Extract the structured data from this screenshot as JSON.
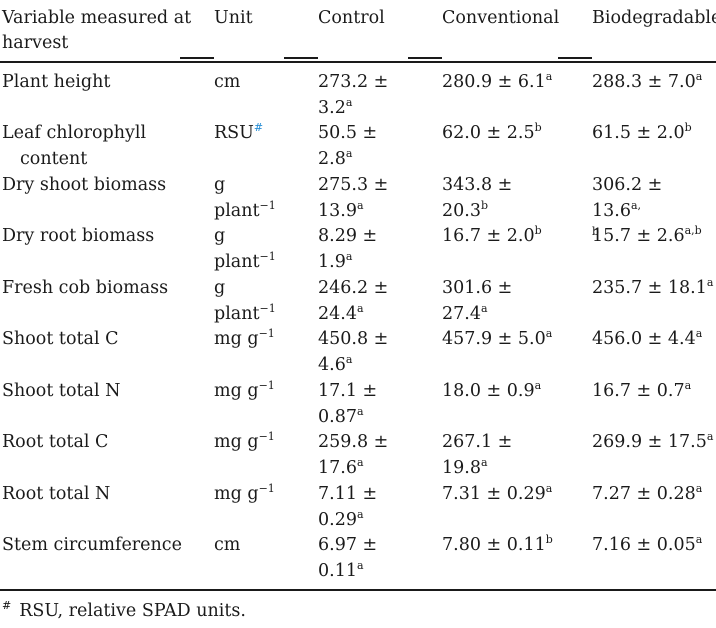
{
  "table": {
    "headers": {
      "variable_line1": "Variable measured at",
      "variable_line2": "harvest",
      "unit": "Unit",
      "control": "Control",
      "conventional": "Conventional",
      "biodegradable": "Biodegradable"
    },
    "rows": [
      {
        "variable": [
          "Plant height"
        ],
        "unit": [
          "cm"
        ],
        "unit_sup": [
          ""
        ],
        "control": [
          "273.2 ±",
          "3.2"
        ],
        "control_sup": [
          "",
          "a"
        ],
        "conventional": [
          "280.9 ± 6.1"
        ],
        "conventional_sup": [
          "a"
        ],
        "biodegradable": [
          "288.3 ± 7.0"
        ],
        "biodegradable_sup": [
          "a"
        ]
      },
      {
        "variable": [
          "Leaf chlorophyll",
          "content"
        ],
        "unit": [
          "RSU"
        ],
        "unit_sup": [
          "#"
        ],
        "control": [
          "50.5 ±",
          "2.8"
        ],
        "control_sup": [
          "",
          "a"
        ],
        "conventional": [
          "62.0 ± 2.5"
        ],
        "conventional_sup": [
          "b"
        ],
        "biodegradable": [
          "61.5 ± 2.0"
        ],
        "biodegradable_sup": [
          "b"
        ]
      },
      {
        "variable": [
          "Dry shoot biomass"
        ],
        "unit": [
          "g",
          "plant"
        ],
        "unit_sup": [
          "",
          "−1"
        ],
        "control": [
          "275.3 ±",
          "13.9"
        ],
        "control_sup": [
          "",
          "a"
        ],
        "conventional": [
          "343.8 ±",
          "20.3"
        ],
        "conventional_sup": [
          "",
          "b"
        ],
        "biodegradable": [
          "306.2 ± 13.6",
          ""
        ],
        "biodegradable_sup": [
          "a,",
          "b"
        ]
      },
      {
        "variable": [
          "Dry root biomass"
        ],
        "unit": [
          "g",
          "plant"
        ],
        "unit_sup": [
          "",
          "−1"
        ],
        "control": [
          "8.29 ±",
          "1.9"
        ],
        "control_sup": [
          "",
          "a"
        ],
        "conventional": [
          "16.7 ± 2.0"
        ],
        "conventional_sup": [
          "b"
        ],
        "biodegradable": [
          "15.7 ± 2.6"
        ],
        "biodegradable_sup": [
          "a,b"
        ]
      },
      {
        "variable": [
          "Fresh cob biomass"
        ],
        "unit": [
          "g",
          "plant"
        ],
        "unit_sup": [
          "",
          "−1"
        ],
        "control": [
          "246.2 ±",
          "24.4"
        ],
        "control_sup": [
          "",
          "a"
        ],
        "conventional": [
          "301.6 ±",
          "27.4"
        ],
        "conventional_sup": [
          "",
          "a"
        ],
        "biodegradable": [
          "235.7 ± 18.1"
        ],
        "biodegradable_sup": [
          "a"
        ]
      },
      {
        "variable": [
          "Shoot total C"
        ],
        "unit": [
          "mg g"
        ],
        "unit_sup": [
          "−1"
        ],
        "control": [
          "450.8 ±",
          "4.6"
        ],
        "control_sup": [
          "",
          "a"
        ],
        "conventional": [
          "457.9 ± 5.0"
        ],
        "conventional_sup": [
          "a"
        ],
        "biodegradable": [
          "456.0 ± 4.4"
        ],
        "biodegradable_sup": [
          "a"
        ]
      },
      {
        "variable": [
          "Shoot total N"
        ],
        "unit": [
          "mg g"
        ],
        "unit_sup": [
          "−1"
        ],
        "control": [
          "17.1 ±",
          "0.87"
        ],
        "control_sup": [
          "",
          "a"
        ],
        "conventional": [
          "18.0 ± 0.9"
        ],
        "conventional_sup": [
          "a"
        ],
        "biodegradable": [
          "16.7 ± 0.7"
        ],
        "biodegradable_sup": [
          "a"
        ]
      },
      {
        "variable": [
          "Root total C"
        ],
        "unit": [
          "mg g"
        ],
        "unit_sup": [
          "−1"
        ],
        "control": [
          "259.8 ±",
          "17.6"
        ],
        "control_sup": [
          "",
          "a"
        ],
        "conventional": [
          "267.1 ±",
          "19.8"
        ],
        "conventional_sup": [
          "",
          "a"
        ],
        "biodegradable": [
          "269.9 ± 17.5"
        ],
        "biodegradable_sup": [
          "a"
        ]
      },
      {
        "variable": [
          "Root total N"
        ],
        "unit": [
          "mg g"
        ],
        "unit_sup": [
          "−1"
        ],
        "control": [
          "7.11 ±",
          "0.29"
        ],
        "control_sup": [
          "",
          "a"
        ],
        "conventional": [
          "7.31 ± 0.29"
        ],
        "conventional_sup": [
          "a"
        ],
        "biodegradable": [
          "7.27 ± 0.28"
        ],
        "biodegradable_sup": [
          "a"
        ]
      },
      {
        "variable": [
          "Stem circumference"
        ],
        "unit": [
          "cm"
        ],
        "unit_sup": [
          ""
        ],
        "control": [
          "6.97 ±",
          "0.11"
        ],
        "control_sup": [
          "",
          "a"
        ],
        "conventional": [
          "7.80 ± 0.11"
        ],
        "conventional_sup": [
          "b"
        ],
        "biodegradable": [
          "7.16 ± 0.05"
        ],
        "biodegradable_sup": [
          "a"
        ]
      }
    ]
  },
  "footnote": {
    "mark": "#",
    "text": "RSU, relative SPAD units."
  },
  "colors": {
    "text": "#1a1a1a",
    "footnote_link": "#2a8fd6"
  }
}
